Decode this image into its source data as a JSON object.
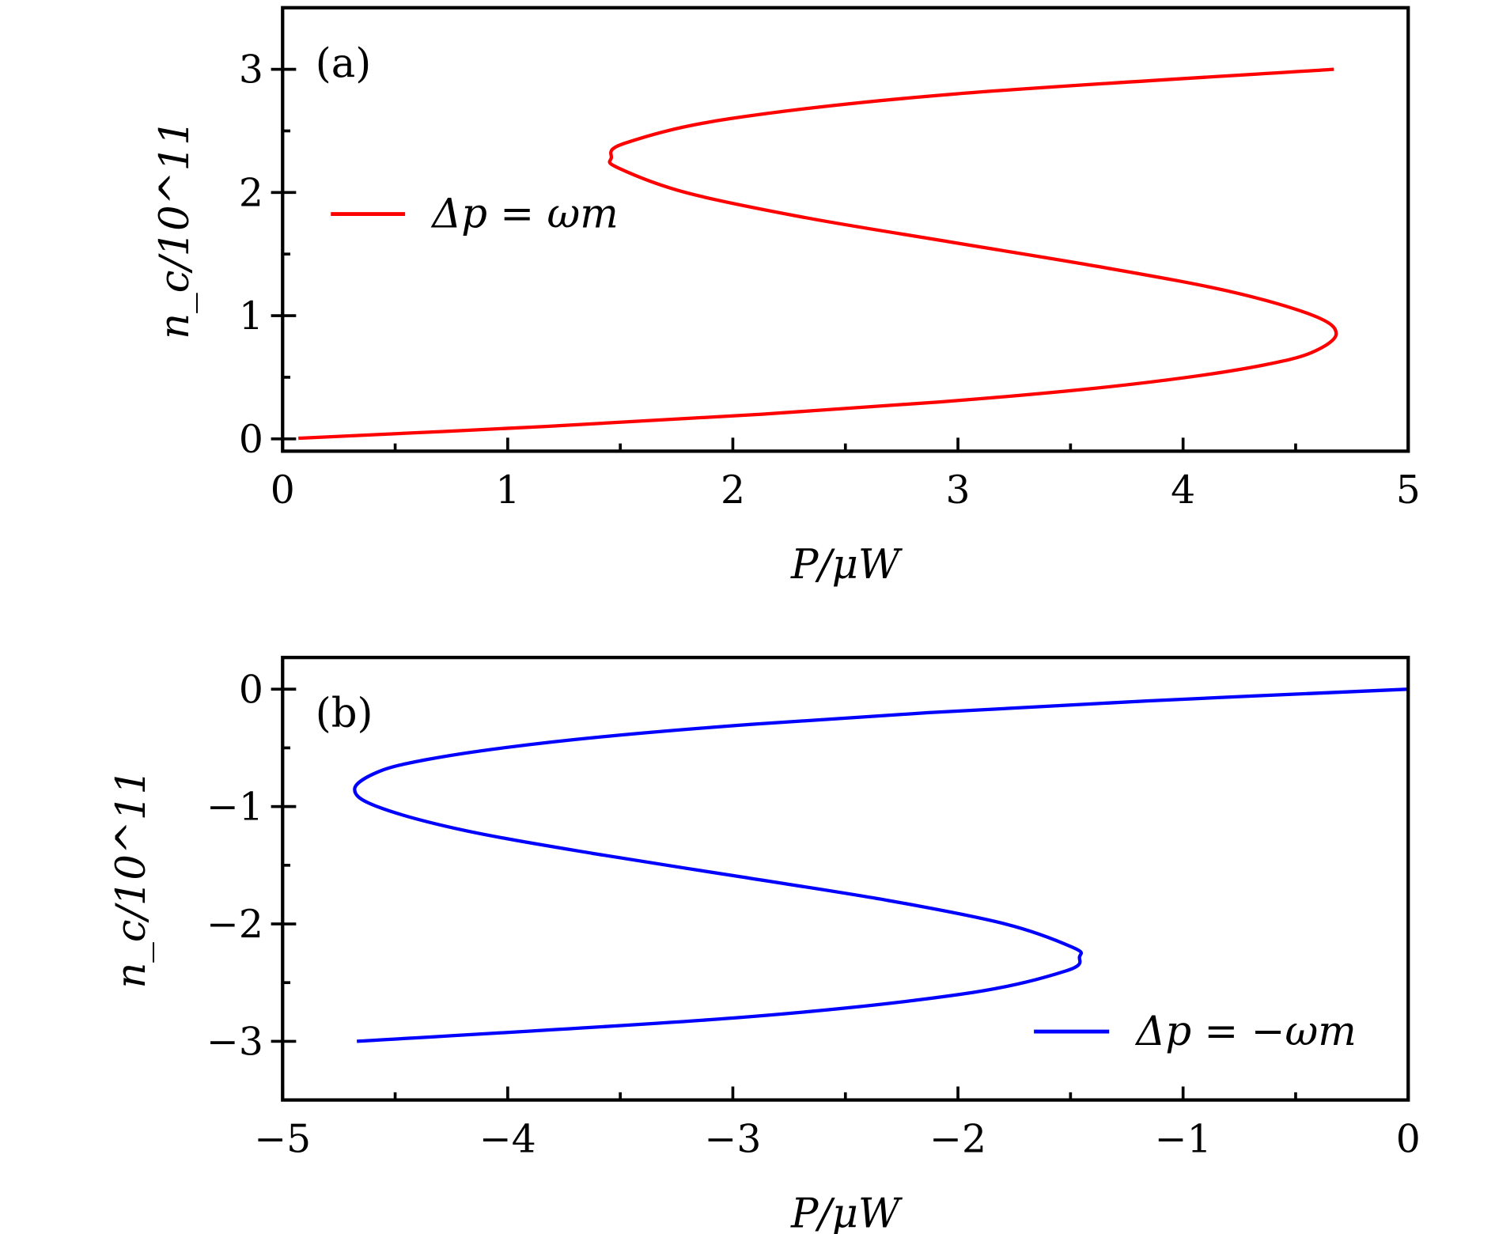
{
  "chart_data": [
    {
      "type": "line",
      "panel_label": "(a)",
      "xlabel": "P/μW",
      "ylabel": "n_c/10^11",
      "xlim": [
        0,
        5
      ],
      "ylim": [
        -0.1,
        3.5
      ],
      "xticks": [
        "0",
        "1",
        "2",
        "3",
        "4",
        "5"
      ],
      "xtick_values": [
        0,
        1,
        2,
        3,
        4,
        5
      ],
      "yticks": [
        "0",
        "1",
        "2",
        "3"
      ],
      "ytick_values": [
        0,
        1,
        2,
        3
      ],
      "legend_position": "center-left",
      "grid": false,
      "series": [
        {
          "name": "Δp = ωm",
          "color": "#ff0000",
          "x": [
            0.07,
            1.16,
            2.13,
            2.92,
            3.55,
            4.02,
            4.36,
            4.57,
            4.68,
            4.58,
            4.2,
            3.62,
            2.96,
            2.31,
            1.79,
            1.49,
            1.46,
            1.52,
            1.99,
            2.99,
            4.67
          ],
          "y": [
            0.005,
            0.1,
            0.2,
            0.3,
            0.4,
            0.5,
            0.6,
            0.7,
            0.85,
            1.0,
            1.2,
            1.4,
            1.6,
            1.8,
            2.0,
            2.2,
            2.28,
            2.4,
            2.6,
            2.8,
            3.0
          ]
        }
      ]
    },
    {
      "type": "line",
      "panel_label": "(b)",
      "xlabel": "P/μW",
      "ylabel": "n_c/10^11",
      "xlim": [
        -5,
        0
      ],
      "ylim": [
        -3.5,
        0.27
      ],
      "xticks": [
        "−5",
        "−4",
        "−3",
        "−2",
        "−1",
        "0"
      ],
      "xtick_values": [
        -5,
        -4,
        -3,
        -2,
        -1,
        0
      ],
      "yticks": [
        "0",
        "−1",
        "−2",
        "−3"
      ],
      "ytick_values": [
        0,
        -1,
        -2,
        -3
      ],
      "legend_position": "bottom-right",
      "grid": false,
      "series": [
        {
          "name": "Δp = −ωm",
          "color": "#0000ff",
          "x": [
            0,
            -1.16,
            -2.13,
            -2.92,
            -3.55,
            -4.02,
            -4.36,
            -4.57,
            -4.68,
            -4.58,
            -4.2,
            -3.62,
            -2.96,
            -2.31,
            -1.79,
            -1.49,
            -1.46,
            -1.52,
            -1.99,
            -2.99,
            -4.67
          ],
          "y": [
            0,
            -0.1,
            -0.2,
            -0.3,
            -0.4,
            -0.5,
            -0.6,
            -0.7,
            -0.85,
            -1.0,
            -1.2,
            -1.4,
            -1.6,
            -1.8,
            -2.0,
            -2.2,
            -2.28,
            -2.4,
            -2.6,
            -2.8,
            -3.0
          ]
        }
      ]
    }
  ]
}
